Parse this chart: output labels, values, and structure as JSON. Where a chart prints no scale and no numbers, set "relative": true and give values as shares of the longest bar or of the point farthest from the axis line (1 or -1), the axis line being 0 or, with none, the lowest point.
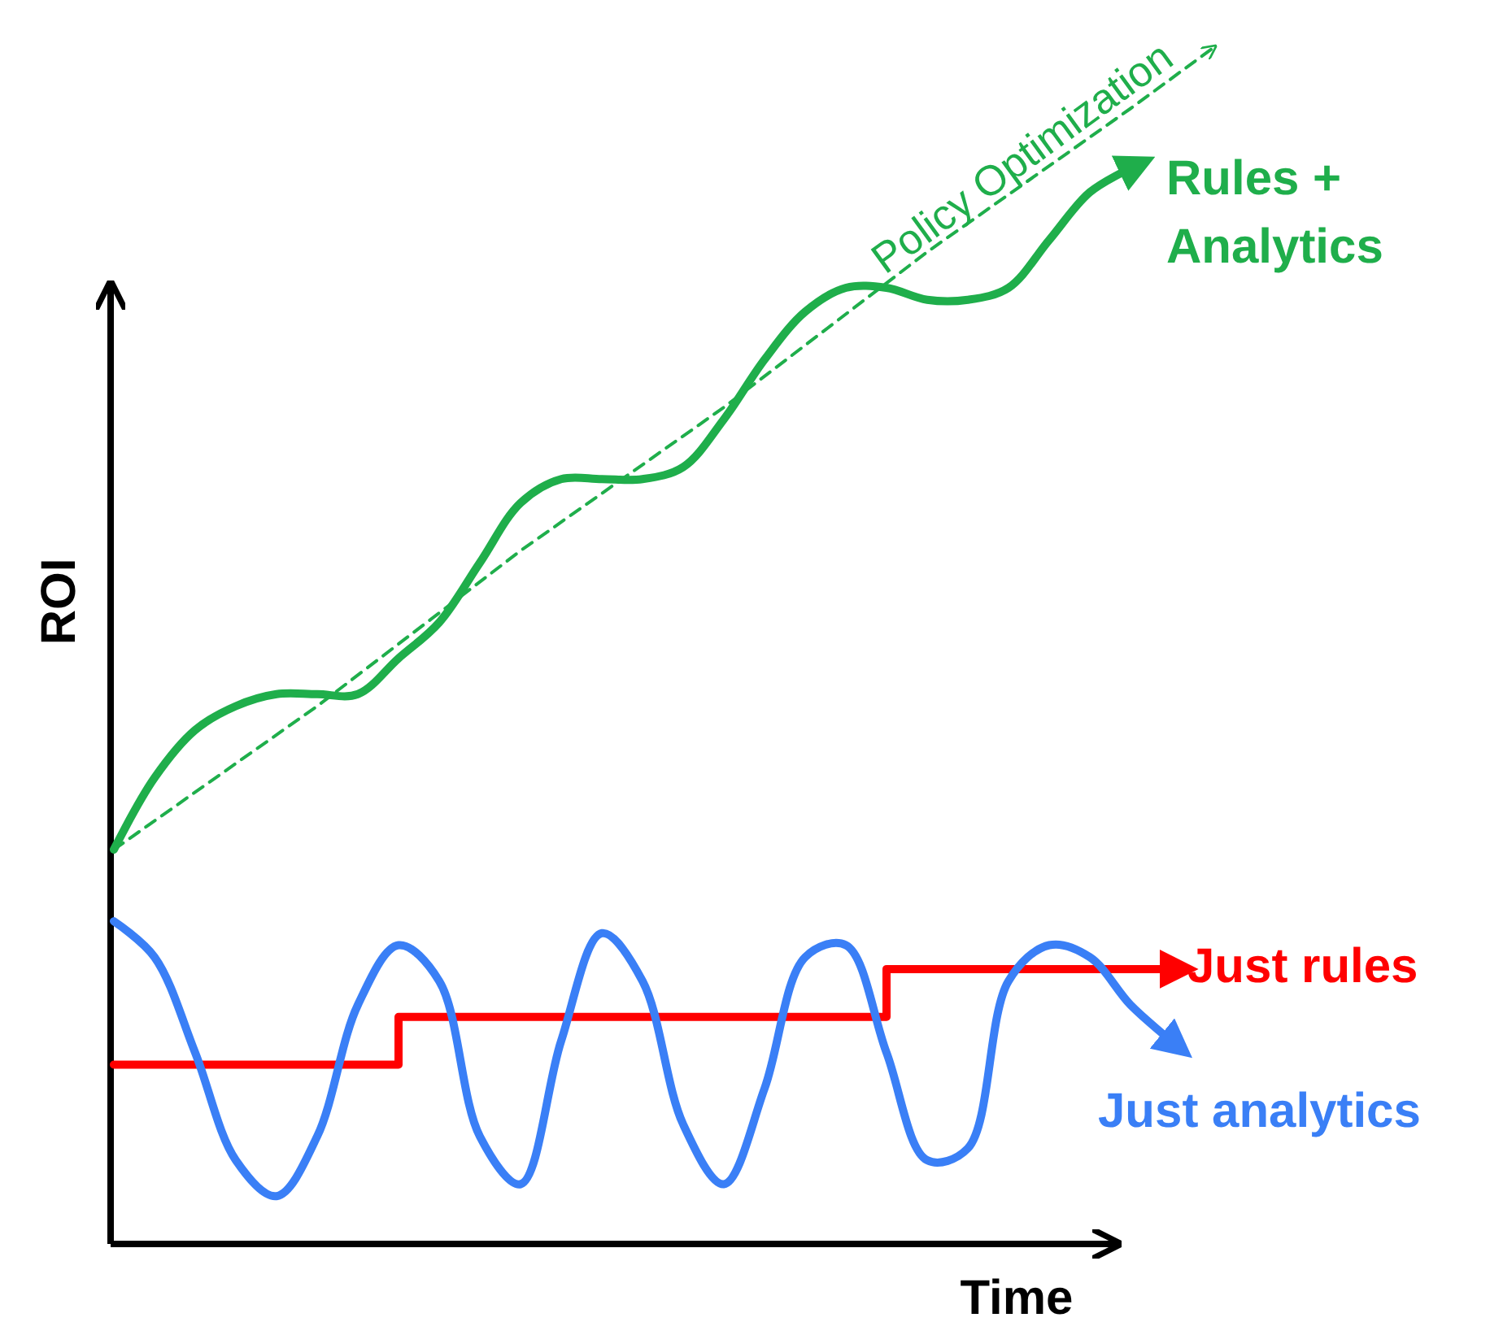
{
  "chart_data": {
    "type": "line",
    "relative": true,
    "xlabel": "Time",
    "ylabel": "ROI",
    "marker": "none",
    "categories": [
      null,
      null,
      null,
      null,
      null,
      null,
      null,
      null,
      null,
      null,
      null,
      null,
      null,
      null,
      null,
      null,
      null,
      null,
      null,
      null,
      null,
      null,
      null,
      null,
      null,
      null,
      null,
      null
    ],
    "series": [
      {
        "name": "Rules + Analytics",
        "color": "#1fae4b",
        "line_style": "solid",
        "values": [
          0.33,
          0.39,
          0.43,
          0.45,
          0.46,
          0.46,
          0.46,
          0.49,
          0.52,
          0.57,
          0.62,
          0.64,
          0.64,
          0.64,
          0.65,
          0.69,
          0.74,
          0.78,
          0.8,
          0.8,
          0.79,
          0.79,
          0.8,
          0.84,
          0.88,
          0.9,
          null,
          null
        ]
      },
      {
        "name": "Policy Optimization",
        "color": "#1fae4b",
        "line_style": "dashed",
        "values": [
          0.33,
          null,
          null,
          null,
          null,
          0.45,
          null,
          null,
          null,
          null,
          0.58,
          null,
          null,
          null,
          null,
          0.7,
          null,
          null,
          null,
          null,
          0.83,
          null,
          null,
          null,
          null,
          0.95,
          null,
          1
        ]
      },
      {
        "name": "Just rules",
        "color": "#ff0000",
        "type": "step",
        "line_style": "solid",
        "values": [
          0.15,
          0.15,
          0.15,
          0.15,
          0.15,
          0.15,
          0.15,
          0.19,
          0.19,
          0.19,
          0.19,
          0.19,
          0.19,
          0.19,
          0.19,
          0.19,
          0.19,
          0.19,
          0.19,
          0.23,
          0.23,
          0.23,
          0.23,
          0.23,
          0.23,
          0.23,
          0.23,
          null
        ]
      },
      {
        "name": "Just analytics",
        "color": "#3a7ff6",
        "line_style": "solid",
        "values": [
          0.27,
          0.24,
          0.16,
          0.07,
          0.04,
          0.09,
          0.2,
          0.25,
          0.22,
          0.09,
          0.05,
          0.17,
          0.26,
          0.22,
          0.1,
          0.05,
          0.13,
          0.24,
          0.25,
          0.16,
          0.07,
          0.08,
          0.22,
          0.25,
          0.24,
          0.2,
          0.17,
          null
        ]
      }
    ]
  }
}
